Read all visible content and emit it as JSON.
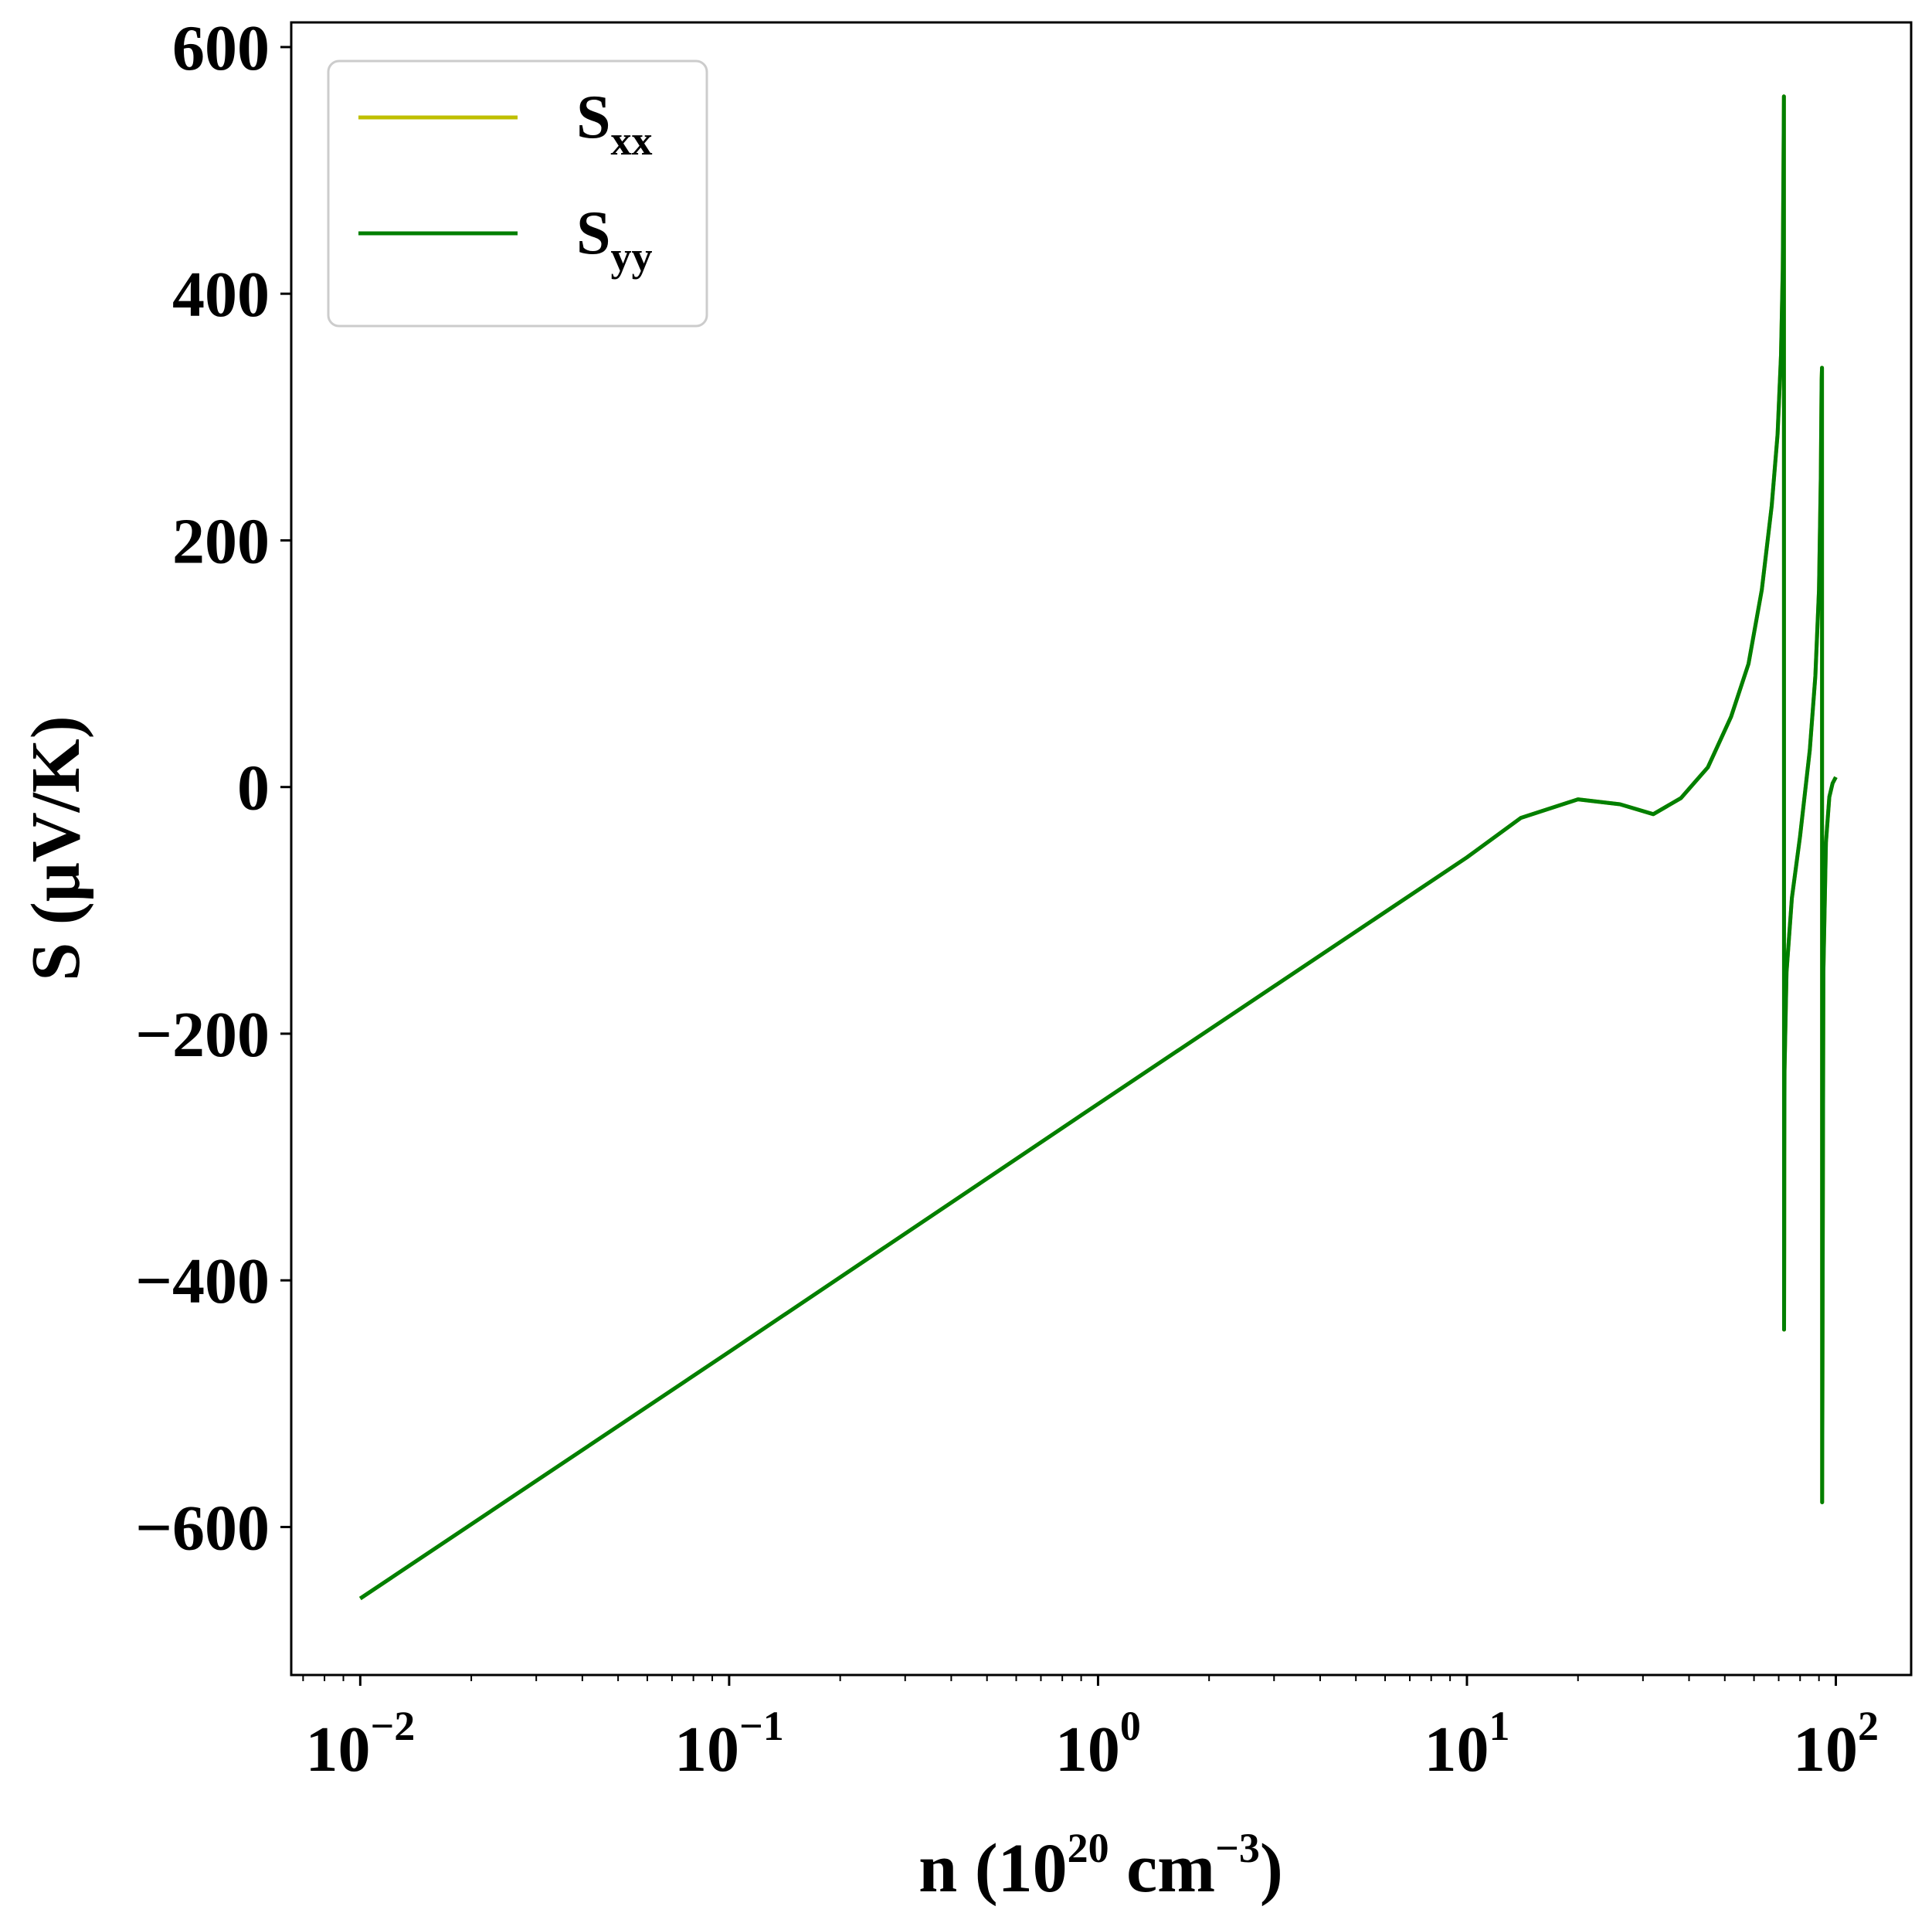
{
  "chart_data": {
    "type": "line",
    "xscale": "log",
    "xlabel": {
      "prefix": "n (10",
      "sup1": "20",
      "mid": " cm",
      "sup2": "−3",
      "suffix": ")"
    },
    "ylabel": "S (μV/K)",
    "xlim": [
      0.0065,
      160
    ],
    "ylim": [
      -720,
      620
    ],
    "xticks": [
      {
        "value": 0.01,
        "base": "10",
        "exp": "−2"
      },
      {
        "value": 0.1,
        "base": "10",
        "exp": "−1"
      },
      {
        "value": 1,
        "base": "10",
        "exp": "0"
      },
      {
        "value": 10,
        "base": "10",
        "exp": "1"
      },
      {
        "value": 100,
        "base": "10",
        "exp": "2"
      }
    ],
    "yticks": [
      {
        "value": 600,
        "label": "600"
      },
      {
        "value": 400,
        "label": "400"
      },
      {
        "value": 200,
        "label": "200"
      },
      {
        "value": 0,
        "label": "0"
      },
      {
        "value": -200,
        "label": "−200"
      },
      {
        "value": -400,
        "label": "−400"
      },
      {
        "value": -600,
        "label": "−600"
      }
    ],
    "grid": false,
    "legend_position": "upper-left",
    "series": [
      {
        "name": "S_xx",
        "label_main": "S",
        "label_sub": "xx",
        "color": "#bfbf00",
        "x": [
          0.01,
          0.1,
          1,
          10,
          14,
          20,
          26,
          32,
          38,
          45,
          52,
          58,
          63,
          67,
          69.5,
          71,
          71.8,
          72.1,
          72.3,
          72.4,
          72.45,
          72.5,
          72.6,
          73.5,
          76,
          80,
          85,
          88,
          90,
          91,
          91.5,
          91.7,
          91.8,
          92.5,
          94,
          96,
          98,
          100
        ],
        "y": [
          -658,
          -458,
          -257,
          -57,
          -25,
          -10,
          -14,
          -22,
          -9,
          16,
          57,
          100,
          160,
          228,
          286,
          350,
          420,
          500,
          560,
          -440,
          -370,
          -300,
          -230,
          -150,
          -90,
          -40,
          30,
          90,
          160,
          250,
          330,
          340,
          -580,
          -150,
          -45,
          -8,
          3,
          8
        ]
      },
      {
        "name": "S_yy",
        "label_main": "S",
        "label_sub": "yy",
        "color": "#007f00",
        "x": [
          0.01,
          0.1,
          1,
          10,
          14,
          20,
          26,
          32,
          38,
          45,
          52,
          58,
          63,
          67,
          69.5,
          71,
          71.8,
          72.1,
          72.3,
          72.4,
          72.45,
          72.5,
          72.6,
          73.5,
          76,
          80,
          85,
          88,
          90,
          91,
          91.5,
          91.7,
          91.8,
          92.5,
          94,
          96,
          98,
          100
        ],
        "y": [
          -658,
          -458,
          -257,
          -57,
          -25,
          -10,
          -14,
          -22,
          -9,
          16,
          57,
          100,
          160,
          228,
          286,
          350,
          420,
          500,
          560,
          -440,
          -370,
          -300,
          -230,
          -150,
          -90,
          -40,
          30,
          90,
          160,
          250,
          330,
          340,
          -580,
          -150,
          -45,
          -8,
          3,
          8
        ]
      }
    ]
  }
}
